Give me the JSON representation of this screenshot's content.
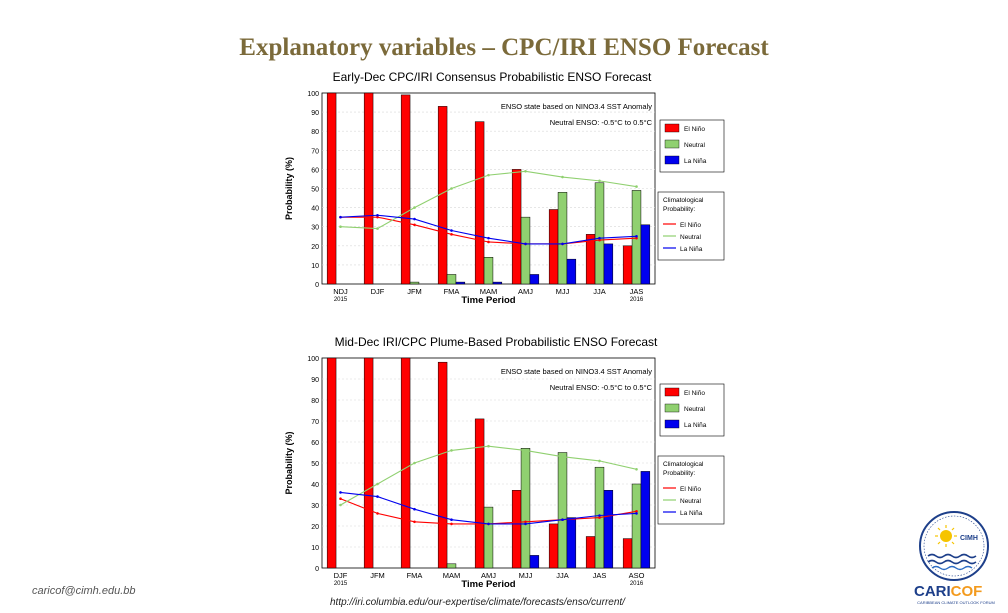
{
  "slide": {
    "title": "Explanatory variables – CPC/IRI ENSO Forecast",
    "footer_email": "caricof@cimh.edu.bb",
    "footer_url": "http://iri.columbia.edu/our-expertise/climate/forecasts/enso/current/"
  },
  "logo": {
    "org": "CIMH",
    "brand_cari": "CARI",
    "brand_cof": "COF",
    "tagline": "CARIBBEAN CLIMATE OUTLOOK FORUM",
    "colors": {
      "blue": "#1d3f8a",
      "orange": "#f39a1d",
      "yellow": "#f6c400"
    }
  },
  "chart_data": [
    {
      "type": "bar",
      "title": "Early-Dec CPC/IRI Consensus Probabilistic ENSO Forecast",
      "xlabel": "Time Period",
      "ylabel": "Probability (%)",
      "ylim": [
        0,
        100
      ],
      "yticks": [
        "0",
        "10",
        "20",
        "30",
        "40",
        "50",
        "60",
        "70",
        "80",
        "90",
        "100"
      ],
      "categories": [
        "NDJ",
        "DJF",
        "JFM",
        "FMA",
        "MAM",
        "AMJ",
        "MJJ",
        "JJA",
        "JAS"
      ],
      "year_labels": [
        {
          "index": 0,
          "text": "2015"
        },
        {
          "index": 8,
          "text": "2016"
        }
      ],
      "annotation_1": "ENSO state based on NINO3.4 SST Anomaly",
      "annotation_2": "Neutral ENSO: -0.5°C to 0.5°C",
      "legend_title": "Climatological Probability:",
      "series": [
        {
          "name": "El Niño",
          "color": "#ff0000",
          "values": [
            100,
            100,
            99,
            93,
            85,
            60,
            39,
            26,
            20
          ]
        },
        {
          "name": "Neutral",
          "color": "#90d070",
          "values": [
            0,
            0,
            1,
            5,
            14,
            35,
            48,
            53,
            49
          ]
        },
        {
          "name": "La Niña",
          "color": "#0000ee",
          "values": [
            0,
            0,
            0,
            1,
            1,
            5,
            13,
            21,
            31
          ]
        }
      ],
      "climatology": [
        {
          "name": "El Niño",
          "color": "#ff0000",
          "values": [
            35,
            35,
            31,
            26,
            22,
            21,
            21,
            23,
            24
          ]
        },
        {
          "name": "Neutral",
          "color": "#90d070",
          "values": [
            30,
            29,
            40,
            50,
            57,
            59,
            56,
            54,
            51
          ]
        },
        {
          "name": "La Niña",
          "color": "#0000ee",
          "values": [
            35,
            36,
            34,
            28,
            24,
            21,
            21,
            24,
            25
          ]
        }
      ]
    },
    {
      "type": "bar",
      "title": "Mid-Dec IRI/CPC Plume-Based Probabilistic ENSO Forecast",
      "xlabel": "Time Period",
      "ylabel": "Probability (%)",
      "ylim": [
        0,
        100
      ],
      "yticks": [
        "0",
        "10",
        "20",
        "30",
        "40",
        "50",
        "60",
        "70",
        "80",
        "90",
        "100"
      ],
      "categories": [
        "DJF",
        "JFM",
        "FMA",
        "MAM",
        "AMJ",
        "MJJ",
        "JJA",
        "JAS",
        "ASO"
      ],
      "year_labels": [
        {
          "index": 0,
          "text": "2015"
        },
        {
          "index": 8,
          "text": "2016"
        }
      ],
      "annotation_1": "ENSO state based on NINO3.4 SST Anomaly",
      "annotation_2": "Neutral ENSO: -0.5°C to 0.5°C",
      "legend_title": "Climatological Probability:",
      "series": [
        {
          "name": "El Niño",
          "color": "#ff0000",
          "values": [
            100,
            100,
            100,
            98,
            71,
            37,
            21,
            15,
            14
          ]
        },
        {
          "name": "Neutral",
          "color": "#90d070",
          "values": [
            0,
            0,
            0,
            2,
            29,
            57,
            55,
            48,
            40
          ]
        },
        {
          "name": "La Niña",
          "color": "#0000ee",
          "values": [
            0,
            0,
            0,
            0,
            0,
            6,
            24,
            37,
            46
          ]
        }
      ],
      "climatology": [
        {
          "name": "El Niño",
          "color": "#ff0000",
          "values": [
            33,
            26,
            22,
            21,
            21,
            22,
            23,
            24,
            27
          ]
        },
        {
          "name": "Neutral",
          "color": "#90d070",
          "values": [
            30,
            40,
            50,
            56,
            58,
            56,
            53,
            51,
            47
          ]
        },
        {
          "name": "La Niña",
          "color": "#0000ee",
          "values": [
            36,
            34,
            28,
            23,
            21,
            21,
            23,
            25,
            26
          ]
        }
      ]
    }
  ]
}
